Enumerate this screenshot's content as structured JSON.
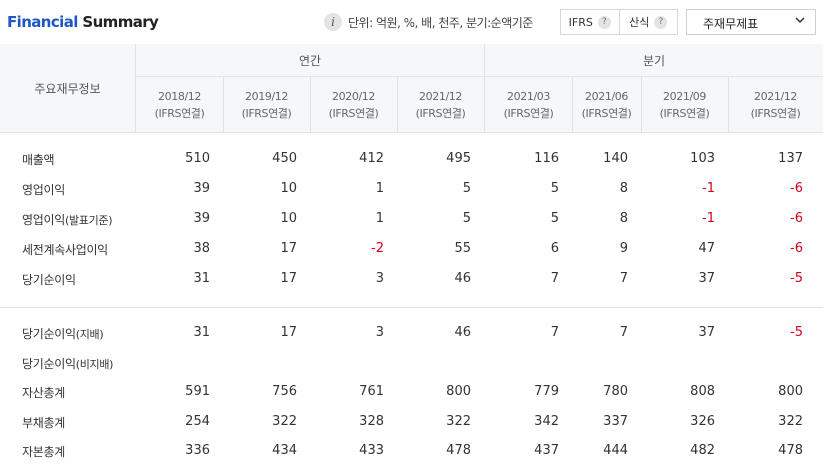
{
  "header": {
    "title_accent": "Financial",
    "title_rest": " Summary",
    "unit_text": "단위: 억원, %, 배, 천주, 분기:순액기준",
    "ifrs_label": "IFRS",
    "formula_label": "산식",
    "help_glyph": "?",
    "info_glyph": "i",
    "select_value": "주재무제표"
  },
  "table": {
    "rowhead_title": "주요재무정보",
    "groups": {
      "annual": "연간",
      "quarter": "분기"
    },
    "columns": [
      {
        "period": "2018/12",
        "basis": "(IFRS연결)"
      },
      {
        "period": "2019/12",
        "basis": "(IFRS연결)"
      },
      {
        "period": "2020/12",
        "basis": "(IFRS연결)"
      },
      {
        "period": "2021/12",
        "basis": "(IFRS연결)"
      },
      {
        "period": "2021/03",
        "basis": "(IFRS연결)"
      },
      {
        "period": "2021/06",
        "basis": "(IFRS연결)"
      },
      {
        "period": "2021/09",
        "basis": "(IFRS연결)"
      },
      {
        "period": "2021/12",
        "basis": "(IFRS연결)"
      }
    ],
    "rows": [
      {
        "label": "매출액",
        "label_sub": "",
        "values": [
          "510",
          "450",
          "412",
          "495",
          "116",
          "140",
          "103",
          "137"
        ]
      },
      {
        "label": "영업이익",
        "label_sub": "",
        "values": [
          "39",
          "10",
          "1",
          "5",
          "5",
          "8",
          "-1",
          "-6"
        ]
      },
      {
        "label": "영업이익",
        "label_sub": "(발표기준)",
        "values": [
          "39",
          "10",
          "1",
          "5",
          "5",
          "8",
          "-1",
          "-6"
        ]
      },
      {
        "label": "세전계속사업이익",
        "label_sub": "",
        "values": [
          "38",
          "17",
          "-2",
          "55",
          "6",
          "9",
          "47",
          "-6"
        ]
      },
      {
        "label": "당기순이익",
        "label_sub": "",
        "values": [
          "31",
          "17",
          "3",
          "46",
          "7",
          "7",
          "37",
          "-5"
        ]
      },
      {
        "label": "당기순이익",
        "label_sub": "(지배)",
        "values": [
          "31",
          "17",
          "3",
          "46",
          "7",
          "7",
          "37",
          "-5"
        ]
      },
      {
        "label": "당기순이익",
        "label_sub": "(비지배)",
        "values": [
          "",
          "",
          "",
          "",
          "",
          "",
          "",
          ""
        ]
      },
      {
        "label": "자산총계",
        "label_sub": "",
        "values": [
          "591",
          "756",
          "761",
          "800",
          "779",
          "780",
          "808",
          "800"
        ]
      },
      {
        "label": "부채총계",
        "label_sub": "",
        "values": [
          "254",
          "322",
          "328",
          "322",
          "342",
          "337",
          "326",
          "322"
        ]
      },
      {
        "label": "자본총계",
        "label_sub": "",
        "values": [
          "336",
          "434",
          "433",
          "478",
          "437",
          "444",
          "482",
          "478"
        ]
      }
    ],
    "negative_color": "#d0021b"
  }
}
